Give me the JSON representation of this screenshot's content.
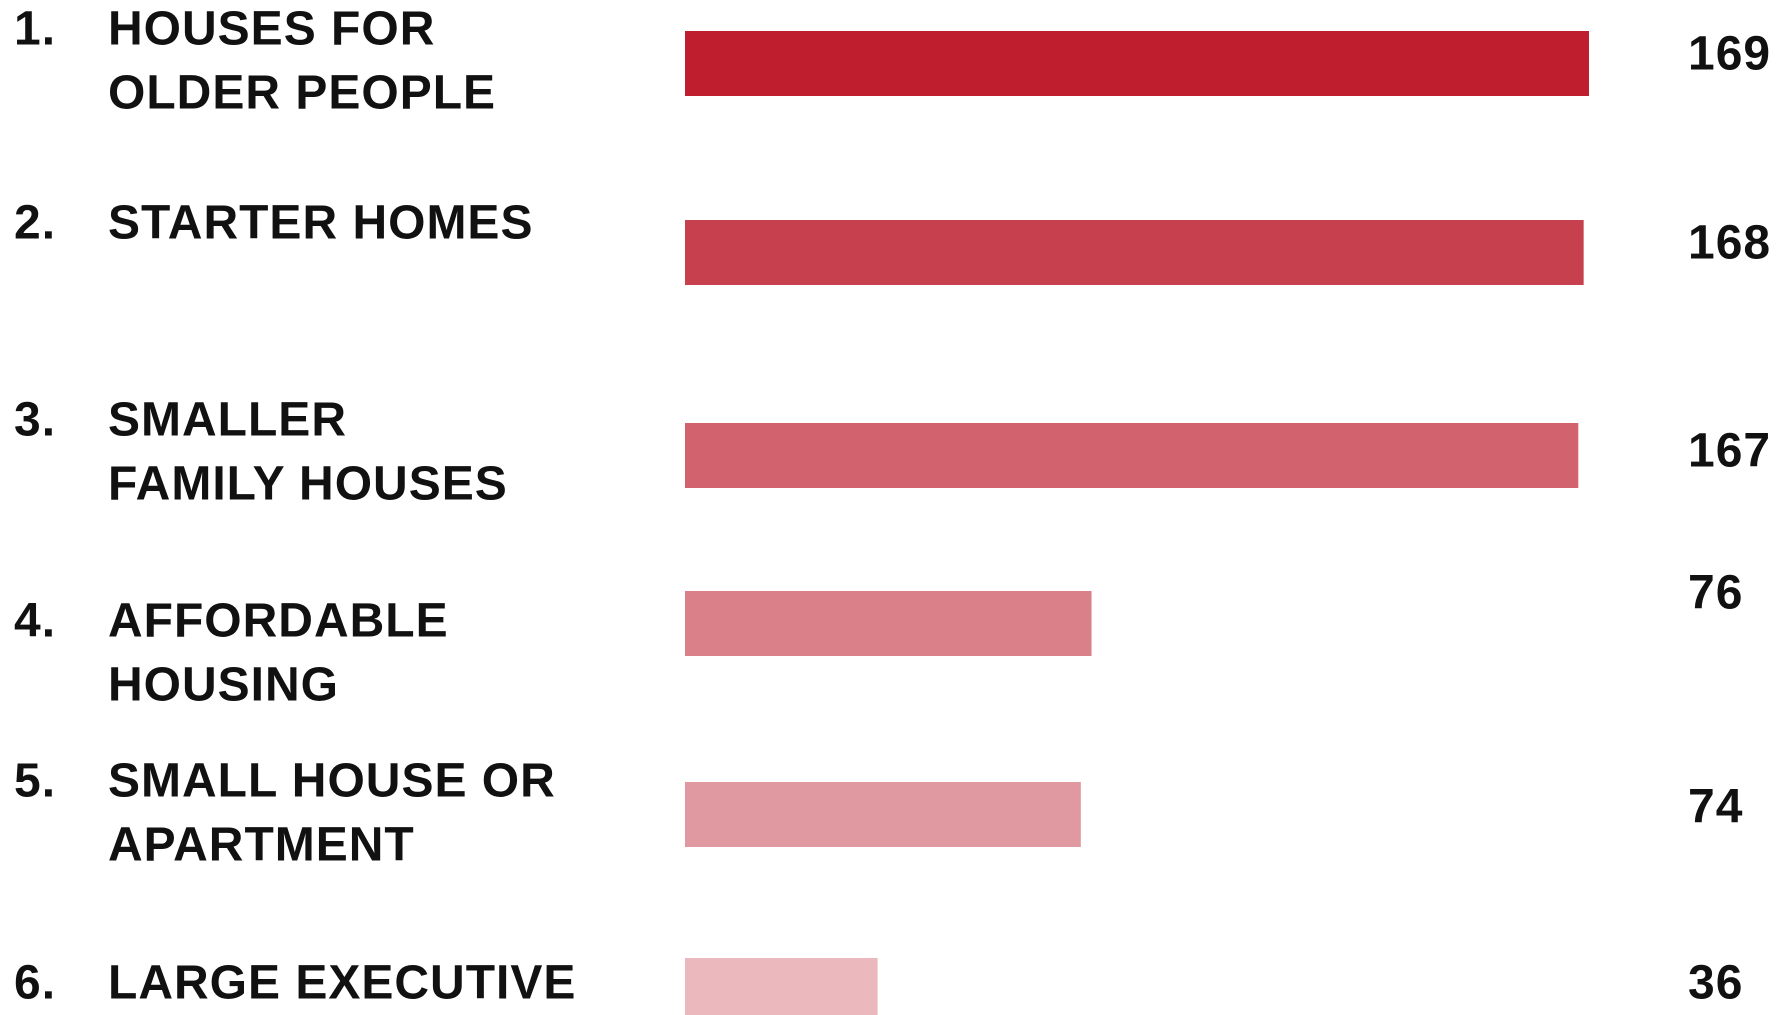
{
  "chart_data": {
    "type": "bar",
    "orientation": "horizontal",
    "ranks": [
      "1.",
      "2.",
      "3.",
      "4.",
      "5.",
      "6."
    ],
    "categories": [
      [
        "HOUSES FOR",
        "OLDER PEOPLE"
      ],
      [
        "STARTER HOMES"
      ],
      [
        "SMALLER",
        "FAMILY HOUSES"
      ],
      [
        "AFFORDABLE",
        "HOUSING"
      ],
      [
        "SMALL HOUSE OR",
        "APARTMENT"
      ],
      [
        "LARGE EXECUTIVE"
      ]
    ],
    "values": [
      169,
      168,
      167,
      76,
      74,
      36
    ],
    "colors": [
      "#be1e2d",
      "#c6404d",
      "#d2626d",
      "#d98089",
      "#e099a0",
      "#eab8bd"
    ]
  }
}
